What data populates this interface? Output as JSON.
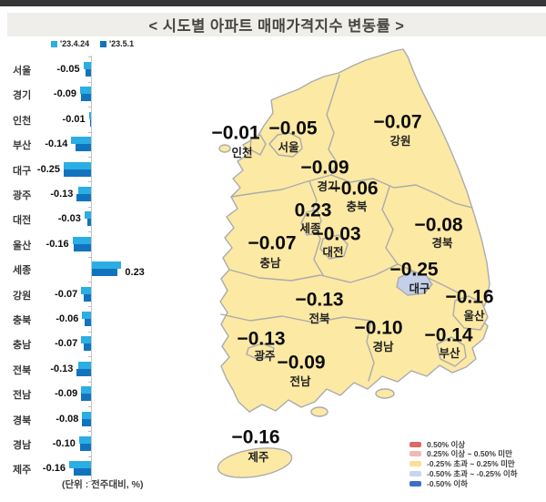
{
  "title": "<  시도별  아파트  매매가격지수  변동률  >",
  "unit_note": "(단위 : 전주대비, %)",
  "colors": {
    "series_prev": "#2BAEE4",
    "series_curr": "#1173BE",
    "map_fill": "#FCE9A4",
    "map_border": "#ABABAB",
    "daegu_fill": "#C3D0E8",
    "banner_bg": "#F0EEEB",
    "top_rule": "#363636"
  },
  "chart_data": {
    "type": "bar",
    "orientation": "horizontal",
    "title": "시도별 아파트 매매가격지수 변동률",
    "unit": "전주대비, %",
    "xlim": [
      -0.3,
      0.3
    ],
    "categories": [
      "서울",
      "경기",
      "인천",
      "부산",
      "대구",
      "광주",
      "대전",
      "울산",
      "세종",
      "강원",
      "충북",
      "충남",
      "전북",
      "전남",
      "경북",
      "경남",
      "제주"
    ],
    "series": [
      {
        "name": "'23.4.24",
        "values": [
          -0.07,
          -0.1,
          -0.02,
          -0.18,
          -0.25,
          -0.12,
          -0.06,
          -0.17,
          0.27,
          -0.09,
          -0.08,
          -0.09,
          -0.12,
          -0.09,
          -0.08,
          -0.11,
          -0.2
        ]
      },
      {
        "name": "'23.5.1",
        "values": [
          -0.05,
          -0.09,
          -0.01,
          -0.14,
          -0.25,
          -0.13,
          -0.03,
          -0.16,
          0.23,
          -0.07,
          -0.06,
          -0.07,
          -0.13,
          -0.09,
          -0.08,
          -0.1,
          -0.16
        ]
      }
    ],
    "value_labels": [
      "-0.05",
      "-0.09",
      "-0.01",
      "-0.14",
      "-0.25",
      "-0.13",
      "-0.03",
      "-0.16",
      "0.23",
      "-0.07",
      "-0.06",
      "-0.07",
      "-0.13",
      "-0.09",
      "-0.08",
      "-0.10",
      "-0.16"
    ],
    "value_labels_series": "'23.5.1",
    "legend_position": "top-left",
    "grid": false
  },
  "map": {
    "regions": [
      {
        "name": "인천",
        "value": "-0.01"
      },
      {
        "name": "서울",
        "value": "-0.05"
      },
      {
        "name": "경기",
        "value": "-0.09"
      },
      {
        "name": "강원",
        "value": "-0.07"
      },
      {
        "name": "충북",
        "value": "-0.06"
      },
      {
        "name": "세종",
        "value": "0.23"
      },
      {
        "name": "대전",
        "value": "-0.03"
      },
      {
        "name": "충남",
        "value": "-0.07"
      },
      {
        "name": "경북",
        "value": "-0.08"
      },
      {
        "name": "대구",
        "value": "-0.25"
      },
      {
        "name": "울산",
        "value": "-0.16"
      },
      {
        "name": "전북",
        "value": "-0.13"
      },
      {
        "name": "광주",
        "value": "-0.13"
      },
      {
        "name": "경남",
        "value": "-0.10"
      },
      {
        "name": "부산",
        "value": "-0.14"
      },
      {
        "name": "전남",
        "value": "-0.09"
      },
      {
        "name": "제주",
        "value": "-0.16"
      }
    ],
    "legend": [
      {
        "color": "#DD6B63",
        "label": "0.50% 이상"
      },
      {
        "color": "#F3B8B5",
        "label": "0.25% 이상 ~ 0.50% 미만"
      },
      {
        "color": "#FBDF92",
        "label": "-0.25% 초과 ~ 0.25% 미만"
      },
      {
        "color": "#C8D5EC",
        "label": "-0.50% 초과 ~ -0.25% 이하"
      },
      {
        "color": "#3E6FC4",
        "label": "-0.50% 이하"
      }
    ]
  }
}
